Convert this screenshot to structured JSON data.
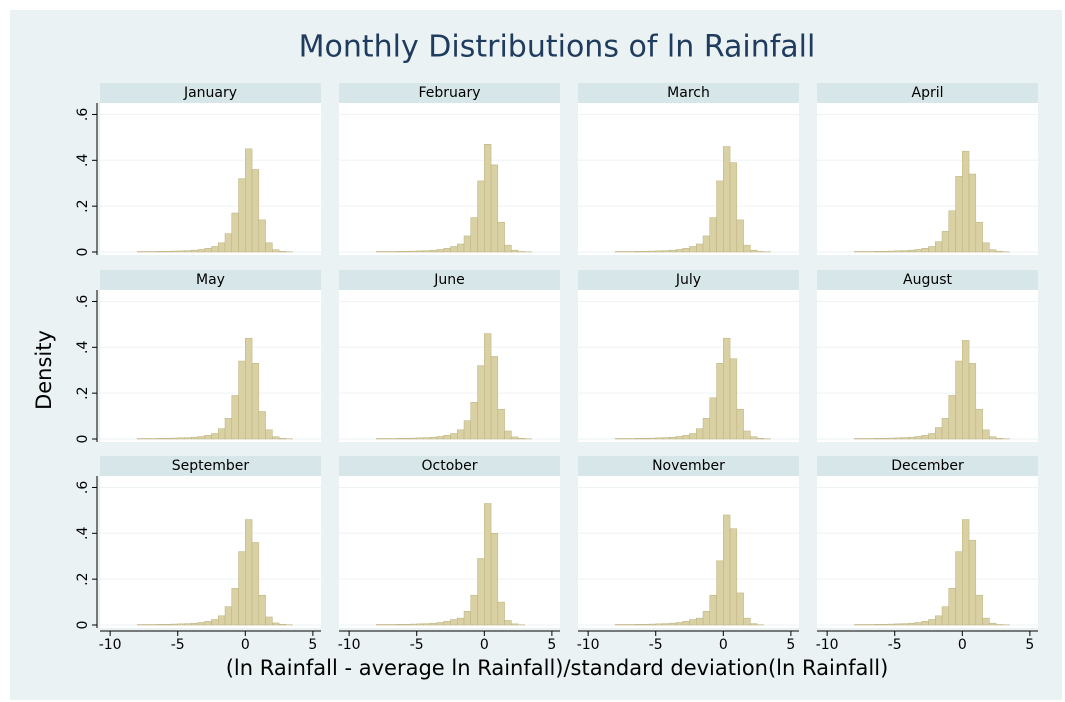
{
  "title": "Monthly Distributions of ln Rainfall",
  "x_label": "(ln Rainfall - average ln Rainfall)/standard deviation(ln Rainfall)",
  "y_label": "Density",
  "chart_data": [
    {
      "type": "histogram",
      "title": "January",
      "color": "#d9d1a3",
      "grid": true,
      "xlim": [
        -10.75,
        5.6
      ],
      "ylim": [
        0,
        0.65
      ],
      "yticks": [
        0,
        {
          "value": 0.2,
          "label": ".2"
        },
        {
          "value": 0.4,
          "label": ".4"
        },
        {
          "value": 0.6,
          "label": ".6"
        }
      ],
      "bins": [
        -8,
        -7.5,
        -7,
        -6.5,
        -6,
        -5.5,
        -5,
        -4.5,
        -4,
        -3.5,
        -3,
        -2.5,
        -2,
        -1.5,
        -1,
        -0.5,
        0,
        0.5,
        1,
        1.5,
        2,
        2.5,
        3,
        3.5,
        4
      ],
      "values": [
        0.002,
        0.002,
        0.002,
        0.003,
        0.003,
        0.004,
        0.005,
        0.006,
        0.008,
        0.011,
        0.016,
        0.024,
        0.04,
        0.08,
        0.17,
        0.32,
        0.45,
        0.36,
        0.14,
        0.04,
        0.01,
        0.003,
        0.001,
        0
      ]
    },
    {
      "type": "histogram",
      "title": "February",
      "color": "#d9d1a3",
      "grid": true,
      "xlim": [
        -10.75,
        5.6
      ],
      "ylim": [
        0,
        0.65
      ],
      "bins": [
        -8,
        -7.5,
        -7,
        -6.5,
        -6,
        -5.5,
        -5,
        -4.5,
        -4,
        -3.5,
        -3,
        -2.5,
        -2,
        -1.5,
        -1,
        -0.5,
        0,
        0.5,
        1,
        1.5,
        2,
        2.5,
        3,
        3.5,
        4
      ],
      "values": [
        0.002,
        0.002,
        0.002,
        0.003,
        0.003,
        0.004,
        0.005,
        0.006,
        0.008,
        0.011,
        0.016,
        0.024,
        0.035,
        0.07,
        0.15,
        0.31,
        0.47,
        0.38,
        0.13,
        0.03,
        0.008,
        0.002,
        0.001,
        0
      ]
    },
    {
      "type": "histogram",
      "title": "March",
      "color": "#d9d1a3",
      "grid": true,
      "xlim": [
        -10.75,
        5.6
      ],
      "ylim": [
        0,
        0.65
      ],
      "bins": [
        -8,
        -7.5,
        -7,
        -6.5,
        -6,
        -5.5,
        -5,
        -4.5,
        -4,
        -3.5,
        -3,
        -2.5,
        -2,
        -1.5,
        -1,
        -0.5,
        0,
        0.5,
        1,
        1.5,
        2,
        2.5,
        3,
        3.5,
        4
      ],
      "values": [
        0.002,
        0.002,
        0.002,
        0.003,
        0.003,
        0.004,
        0.005,
        0.006,
        0.008,
        0.011,
        0.016,
        0.024,
        0.035,
        0.07,
        0.15,
        0.31,
        0.46,
        0.39,
        0.14,
        0.03,
        0.008,
        0.002,
        0.001,
        0
      ]
    },
    {
      "type": "histogram",
      "title": "April",
      "color": "#d9d1a3",
      "grid": true,
      "xlim": [
        -10.75,
        5.6
      ],
      "ylim": [
        0,
        0.65
      ],
      "bins": [
        -8,
        -7.5,
        -7,
        -6.5,
        -6,
        -5.5,
        -5,
        -4.5,
        -4,
        -3.5,
        -3,
        -2.5,
        -2,
        -1.5,
        -1,
        -0.5,
        0,
        0.5,
        1,
        1.5,
        2,
        2.5,
        3,
        3.5,
        4
      ],
      "values": [
        0.002,
        0.002,
        0.002,
        0.003,
        0.003,
        0.004,
        0.005,
        0.006,
        0.008,
        0.011,
        0.016,
        0.024,
        0.045,
        0.09,
        0.18,
        0.33,
        0.44,
        0.34,
        0.13,
        0.04,
        0.01,
        0.003,
        0.001,
        0
      ]
    },
    {
      "type": "histogram",
      "title": "May",
      "color": "#d9d1a3",
      "grid": true,
      "xlim": [
        -10.75,
        5.6
      ],
      "ylim": [
        0,
        0.65
      ],
      "yticks": [
        0,
        {
          "value": 0.2,
          "label": ".2"
        },
        {
          "value": 0.4,
          "label": ".4"
        },
        {
          "value": 0.6,
          "label": ".6"
        }
      ],
      "bins": [
        -8,
        -7.5,
        -7,
        -6.5,
        -6,
        -5.5,
        -5,
        -4.5,
        -4,
        -3.5,
        -3,
        -2.5,
        -2,
        -1.5,
        -1,
        -0.5,
        0,
        0.5,
        1,
        1.5,
        2,
        2.5,
        3,
        3.5,
        4
      ],
      "values": [
        0.002,
        0.002,
        0.002,
        0.003,
        0.003,
        0.004,
        0.005,
        0.006,
        0.008,
        0.011,
        0.016,
        0.024,
        0.045,
        0.09,
        0.19,
        0.34,
        0.44,
        0.33,
        0.12,
        0.04,
        0.01,
        0.003,
        0.001,
        0
      ]
    },
    {
      "type": "histogram",
      "title": "June",
      "color": "#d9d1a3",
      "grid": true,
      "xlim": [
        -10.75,
        5.6
      ],
      "ylim": [
        0,
        0.65
      ],
      "bins": [
        -8,
        -7.5,
        -7,
        -6.5,
        -6,
        -5.5,
        -5,
        -4.5,
        -4,
        -3.5,
        -3,
        -2.5,
        -2,
        -1.5,
        -1,
        -0.5,
        0,
        0.5,
        1,
        1.5,
        2,
        2.5,
        3,
        3.5,
        4
      ],
      "values": [
        0.002,
        0.002,
        0.002,
        0.003,
        0.003,
        0.004,
        0.005,
        0.006,
        0.008,
        0.011,
        0.016,
        0.024,
        0.04,
        0.08,
        0.16,
        0.32,
        0.46,
        0.36,
        0.13,
        0.035,
        0.009,
        0.003,
        0.001,
        0
      ]
    },
    {
      "type": "histogram",
      "title": "July",
      "color": "#d9d1a3",
      "grid": true,
      "xlim": [
        -10.75,
        5.6
      ],
      "ylim": [
        0,
        0.65
      ],
      "bins": [
        -8,
        -7.5,
        -7,
        -6.5,
        -6,
        -5.5,
        -5,
        -4.5,
        -4,
        -3.5,
        -3,
        -2.5,
        -2,
        -1.5,
        -1,
        -0.5,
        0,
        0.5,
        1,
        1.5,
        2,
        2.5,
        3,
        3.5,
        4
      ],
      "values": [
        0.002,
        0.002,
        0.002,
        0.003,
        0.003,
        0.004,
        0.005,
        0.006,
        0.008,
        0.011,
        0.016,
        0.024,
        0.045,
        0.09,
        0.18,
        0.33,
        0.44,
        0.35,
        0.13,
        0.035,
        0.01,
        0.003,
        0.001,
        0
      ]
    },
    {
      "type": "histogram",
      "title": "August",
      "color": "#d9d1a3",
      "grid": true,
      "xlim": [
        -10.75,
        5.6
      ],
      "ylim": [
        0,
        0.65
      ],
      "bins": [
        -8,
        -7.5,
        -7,
        -6.5,
        -6,
        -5.5,
        -5,
        -4.5,
        -4,
        -3.5,
        -3,
        -2.5,
        -2,
        -1.5,
        -1,
        -0.5,
        0,
        0.5,
        1,
        1.5,
        2,
        2.5,
        3,
        3.5,
        4
      ],
      "values": [
        0.002,
        0.002,
        0.002,
        0.003,
        0.003,
        0.004,
        0.005,
        0.006,
        0.008,
        0.011,
        0.016,
        0.024,
        0.05,
        0.09,
        0.19,
        0.34,
        0.43,
        0.33,
        0.13,
        0.04,
        0.01,
        0.003,
        0.001,
        0
      ]
    },
    {
      "type": "histogram",
      "title": "September",
      "color": "#d9d1a3",
      "grid": true,
      "xlim": [
        -10.75,
        5.6
      ],
      "ylim": [
        0,
        0.65
      ],
      "xticks": [
        -10,
        -5,
        0,
        5
      ],
      "yticks": [
        0,
        {
          "value": 0.2,
          "label": ".2"
        },
        {
          "value": 0.4,
          "label": ".4"
        },
        {
          "value": 0.6,
          "label": ".6"
        }
      ],
      "bins": [
        -8,
        -7.5,
        -7,
        -6.5,
        -6,
        -5.5,
        -5,
        -4.5,
        -4,
        -3.5,
        -3,
        -2.5,
        -2,
        -1.5,
        -1,
        -0.5,
        0,
        0.5,
        1,
        1.5,
        2,
        2.5,
        3,
        3.5,
        4
      ],
      "values": [
        0.002,
        0.002,
        0.002,
        0.003,
        0.003,
        0.004,
        0.005,
        0.006,
        0.008,
        0.011,
        0.016,
        0.024,
        0.04,
        0.08,
        0.16,
        0.32,
        0.46,
        0.36,
        0.13,
        0.035,
        0.009,
        0.003,
        0.001,
        0
      ]
    },
    {
      "type": "histogram",
      "title": "October",
      "color": "#d9d1a3",
      "grid": true,
      "xlim": [
        -10.75,
        5.6
      ],
      "ylim": [
        0,
        0.65
      ],
      "xticks": [
        -10,
        -5,
        0,
        5
      ],
      "bins": [
        -8,
        -7.5,
        -7,
        -6.5,
        -6,
        -5.5,
        -5,
        -4.5,
        -4,
        -3.5,
        -3,
        -2.5,
        -2,
        -1.5,
        -1,
        -0.5,
        0,
        0.5,
        1,
        1.5,
        2,
        2.5,
        3,
        3.5,
        4
      ],
      "values": [
        0.002,
        0.002,
        0.002,
        0.003,
        0.003,
        0.004,
        0.005,
        0.006,
        0.008,
        0.011,
        0.016,
        0.024,
        0.03,
        0.06,
        0.13,
        0.29,
        0.53,
        0.4,
        0.1,
        0.02,
        0.005,
        0.001,
        0,
        0
      ]
    },
    {
      "type": "histogram",
      "title": "November",
      "color": "#d9d1a3",
      "grid": true,
      "xlim": [
        -10.75,
        5.6
      ],
      "ylim": [
        0,
        0.65
      ],
      "xticks": [
        -10,
        -5,
        0,
        5
      ],
      "bins": [
        -8,
        -7.5,
        -7,
        -6.5,
        -6,
        -5.5,
        -5,
        -4.5,
        -4,
        -3.5,
        -3,
        -2.5,
        -2,
        -1.5,
        -1,
        -0.5,
        0,
        0.5,
        1,
        1.5,
        2,
        2.5,
        3,
        3.5,
        4
      ],
      "values": [
        0.002,
        0.002,
        0.002,
        0.003,
        0.003,
        0.004,
        0.005,
        0.006,
        0.008,
        0.011,
        0.016,
        0.024,
        0.03,
        0.06,
        0.13,
        0.28,
        0.48,
        0.42,
        0.14,
        0.03,
        0.006,
        0.001,
        0,
        0
      ]
    },
    {
      "type": "histogram",
      "title": "December",
      "color": "#d9d1a3",
      "grid": true,
      "xlim": [
        -10.75,
        5.6
      ],
      "ylim": [
        0,
        0.65
      ],
      "xticks": [
        -10,
        -5,
        0,
        5
      ],
      "bins": [
        -8,
        -7.5,
        -7,
        -6.5,
        -6,
        -5.5,
        -5,
        -4.5,
        -4,
        -3.5,
        -3,
        -2.5,
        -2,
        -1.5,
        -1,
        -0.5,
        0,
        0.5,
        1,
        1.5,
        2,
        2.5,
        3,
        3.5,
        4
      ],
      "values": [
        0.002,
        0.002,
        0.002,
        0.003,
        0.003,
        0.004,
        0.005,
        0.006,
        0.008,
        0.011,
        0.016,
        0.024,
        0.04,
        0.08,
        0.16,
        0.32,
        0.46,
        0.37,
        0.13,
        0.03,
        0.008,
        0.002,
        0.001,
        0
      ]
    }
  ]
}
